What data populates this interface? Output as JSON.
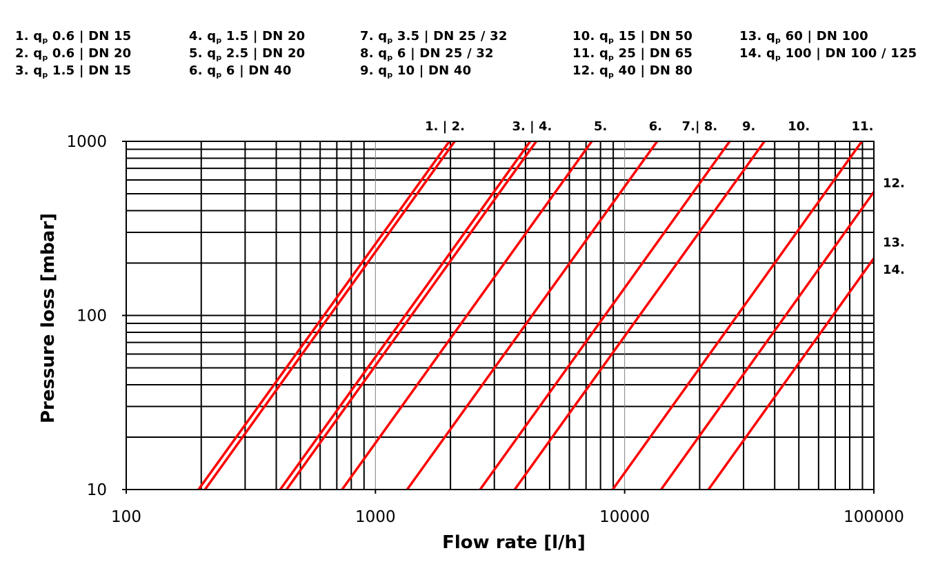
{
  "chart_data": {
    "type": "line",
    "x_scale": "log",
    "y_scale": "log",
    "xlim": [
      100,
      100000
    ],
    "ylim": [
      10,
      1000
    ],
    "grid": true,
    "xlabel": "Flow rate [l/h]",
    "ylabel": "Pressure loss [mbar]",
    "x_tick_labels": [
      "100",
      "1000",
      "10000",
      "100000"
    ],
    "y_tick_labels": [
      "10",
      "100",
      "1000"
    ],
    "line_color": "#ff0000",
    "legend_columns": [
      [
        {
          "num": "1.",
          "pre": "q",
          "sub": "p",
          "post": " 0.6 | DN 15"
        },
        {
          "num": "2.",
          "pre": "q",
          "sub": "p",
          "post": " 0.6 | DN 20"
        },
        {
          "num": "3.",
          "pre": "q",
          "sub": "p",
          "post": " 1.5 | DN 15"
        }
      ],
      [
        {
          "num": "4.",
          "pre": "q",
          "sub": "p",
          "post": " 1.5 | DN 20"
        },
        {
          "num": "5.",
          "pre": "q",
          "sub": "p",
          "post": " 2.5 | DN 20"
        },
        {
          "num": "6.",
          "pre": "q",
          "sub": "p",
          "post": " 6 | DN 40"
        }
      ],
      [
        {
          "num": "7.",
          "pre": "q",
          "sub": "p",
          "post": " 3.5 | DN 25 / 32"
        },
        {
          "num": "8.",
          "pre": "q",
          "sub": "p",
          "post": " 6 | DN 25 / 32"
        },
        {
          "num": "9.",
          "pre": "q",
          "sub": "p",
          "post": " 10 | DN 40"
        }
      ],
      [
        {
          "num": "10.",
          "pre": "q",
          "sub": "p",
          "post": " 15 | DN 50"
        },
        {
          "num": "11.",
          "pre": "q",
          "sub": "p",
          "post": " 25 | DN 65"
        },
        {
          "num": "12.",
          "pre": "q",
          "sub": "p",
          "post": " 40 | DN 80"
        }
      ],
      [
        {
          "num": "13.",
          "pre": "q",
          "sub": "p",
          "post": " 60 | DN 100"
        },
        {
          "num": "14.",
          "pre": "q",
          "sub": "p",
          "post": " 100 | DN 100 / 125"
        }
      ]
    ],
    "top_labels": [
      {
        "text": "1. | 2.",
        "x": 1900
      },
      {
        "text": "3. | 4.",
        "x": 4250
      },
      {
        "text": "5.",
        "x": 8000
      },
      {
        "text": "6.",
        "x": 13300
      },
      {
        "text": "7.| 8.",
        "x": 20000
      },
      {
        "text": "9.",
        "x": 31500
      },
      {
        "text": "10.",
        "x": 50000
      },
      {
        "text": "11.",
        "x": 90000
      }
    ],
    "right_labels": [
      {
        "text": "12.",
        "y": 580
      },
      {
        "text": "13.",
        "y": 265
      },
      {
        "text": "14.",
        "y": 185
      }
    ],
    "series": [
      {
        "x": [
          195,
          1980
        ],
        "y": [
          10,
          1000
        ]
      },
      {
        "x": [
          207,
          2080
        ],
        "y": [
          10,
          1000
        ]
      },
      {
        "x": [
          415,
          4180
        ],
        "y": [
          10,
          1000
        ]
      },
      {
        "x": [
          440,
          4420
        ],
        "y": [
          10,
          1000
        ]
      },
      {
        "x": [
          735,
          7380
        ],
        "y": [
          10,
          1000
        ]
      },
      {
        "x": [
          1340,
          13500
        ],
        "y": [
          10,
          1000
        ]
      },
      {
        "x": [
          2630,
          26400
        ],
        "y": [
          10,
          1000
        ]
      },
      {
        "x": [
          3620,
          36400
        ],
        "y": [
          10,
          1000
        ]
      },
      {
        "x": [
          8950,
          89500
        ],
        "y": [
          10,
          1000
        ]
      },
      {
        "x": [
          14000,
          100000
        ],
        "y": [
          10,
          512
        ]
      },
      {
        "x": [
          21700,
          100000
        ],
        "y": [
          10,
          213
        ]
      }
    ]
  }
}
